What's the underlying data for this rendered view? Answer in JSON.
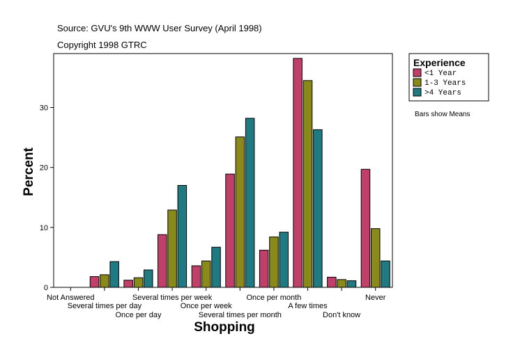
{
  "chart_data": {
    "type": "bar",
    "source_line": "Source: GVU's 9th WWW User Survey (April 1998)",
    "copyright_line": "Copyright 1998 GTRC",
    "xlabel": "Shopping",
    "ylabel": "Percent",
    "ylim": [
      0,
      39
    ],
    "yticks": [
      0,
      10,
      20,
      30
    ],
    "grid": false,
    "note": "Bars show Means",
    "legend_position": "right",
    "legend_title": "Experience",
    "categories": [
      "Not Answered",
      "Several times per day",
      "Once per day",
      "Several times per week",
      "Once per week",
      "Several times per month",
      "Once per month",
      "A few times",
      "Don't know",
      "Never"
    ],
    "series": [
      {
        "name": "<1 Year",
        "color": "#c0406a",
        "values": [
          0,
          1.8,
          1.2,
          8.8,
          3.6,
          18.9,
          6.2,
          38.2,
          1.7,
          19.7
        ]
      },
      {
        "name": "1-3 Years",
        "color": "#8a8a1a",
        "values": [
          0,
          2.1,
          1.6,
          12.9,
          4.4,
          25.1,
          8.4,
          34.5,
          1.3,
          9.8
        ]
      },
      {
        "name": ">4 Years",
        "color": "#1f7a82",
        "values": [
          0,
          4.3,
          2.9,
          17.0,
          6.7,
          28.2,
          9.2,
          26.3,
          1.1,
          4.4
        ]
      }
    ]
  }
}
